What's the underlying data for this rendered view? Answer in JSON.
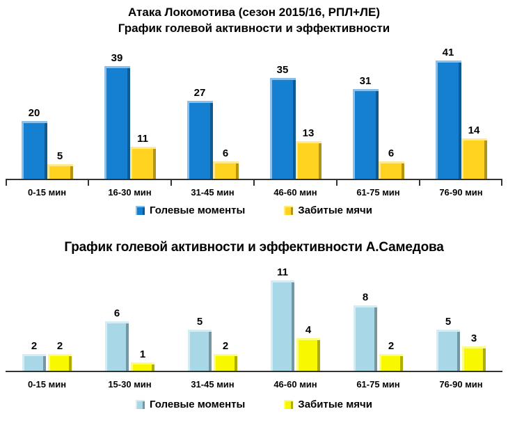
{
  "colors": {
    "background": "#ffffff",
    "axis": "#333333",
    "text": "#000000",
    "lokomotiv_chances_blue": "#1580D2",
    "lokomotiv_goals_gold": "#FFD320",
    "samedov_chances_lightblue": "#A8D8E8",
    "samedov_goals_yellow": "#F8F800"
  },
  "chart_data": [
    {
      "type": "bar",
      "title": "Атака Локомотива (сезон 2015/16, РПЛ+ЛЕ) График голевой активности и эффективности",
      "title_lines": [
        "Атака Локомотива (сезон 2015/16, РПЛ+ЛЕ)",
        "График голевой активности и эффективности"
      ],
      "categories": [
        "0-15 мин",
        "16-30 мин",
        "31-45 мин",
        "46-60 мин",
        "61-75 мин",
        "76-90 мин"
      ],
      "series": [
        {
          "name": "Голевые моменты",
          "color": "#1580D2",
          "values": [
            20,
            39,
            27,
            35,
            31,
            41
          ]
        },
        {
          "name": "Забитые мячи",
          "color": "#FFD320",
          "values": [
            5,
            11,
            6,
            13,
            6,
            14
          ]
        }
      ],
      "xlabel": "",
      "ylabel": "",
      "ylim": [
        0,
        45
      ],
      "grid": false,
      "data_labels": true,
      "legend_position": "bottom"
    },
    {
      "type": "bar",
      "title": "График голевой активности и эффективности А.Самедова",
      "categories": [
        "0-15 мин",
        "15-30 мин",
        "31-45 мин",
        "46-60 мин",
        "61-75 мин",
        "76-90 мин"
      ],
      "series": [
        {
          "name": "Голевые моменты",
          "color": "#A8D8E8",
          "values": [
            2,
            6,
            5,
            11,
            8,
            5
          ]
        },
        {
          "name": "Забитые мячи",
          "color": "#F8F800",
          "values": [
            2,
            1,
            2,
            4,
            2,
            3
          ]
        }
      ],
      "xlabel": "",
      "ylabel": "",
      "ylim": [
        0,
        12
      ],
      "grid": false,
      "data_labels": true,
      "legend_position": "bottom"
    }
  ]
}
